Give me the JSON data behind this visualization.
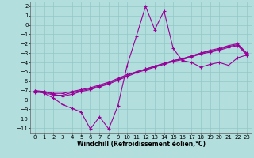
{
  "xlabel": "Windchill (Refroidissement éolien,°C)",
  "bg_color": "#b2dede",
  "grid_color": "#93c8c8",
  "line_color": "#990099",
  "xlim": [
    -0.5,
    23.5
  ],
  "ylim": [
    -11.5,
    2.5
  ],
  "xticks": [
    0,
    1,
    2,
    3,
    4,
    5,
    6,
    7,
    8,
    9,
    10,
    11,
    12,
    13,
    14,
    15,
    16,
    17,
    18,
    19,
    20,
    21,
    22,
    23
  ],
  "yticks": [
    2,
    1,
    0,
    -1,
    -2,
    -3,
    -4,
    -5,
    -6,
    -7,
    -8,
    -9,
    -10,
    -11
  ],
  "line1_x": [
    0,
    1,
    2,
    3,
    4,
    5,
    6,
    7,
    8,
    9,
    10,
    11,
    12,
    13,
    14,
    15,
    16,
    17,
    18,
    19,
    20,
    21,
    22,
    23
  ],
  "line1_y": [
    -7.0,
    -7.3,
    -7.8,
    -8.5,
    -8.9,
    -9.3,
    -11.1,
    -9.8,
    -11.1,
    -8.6,
    -4.3,
    -1.2,
    2.0,
    -0.5,
    1.5,
    -2.5,
    -3.8,
    -4.0,
    -4.5,
    -4.2,
    -4.0,
    -4.3,
    -3.5,
    -3.2
  ],
  "line2_x": [
    0,
    1,
    2,
    3,
    4,
    5,
    6,
    7,
    8,
    9,
    10,
    11,
    12,
    13,
    14,
    15,
    16,
    17,
    18,
    19,
    20,
    21,
    22,
    23
  ],
  "line2_y": [
    -7.0,
    -7.1,
    -7.4,
    -7.6,
    -7.4,
    -7.1,
    -6.9,
    -6.6,
    -6.3,
    -5.9,
    -5.5,
    -5.1,
    -4.8,
    -4.5,
    -4.2,
    -3.9,
    -3.7,
    -3.4,
    -3.1,
    -2.9,
    -2.7,
    -2.4,
    -2.2,
    -3.2
  ],
  "line3_x": [
    0,
    1,
    2,
    3,
    4,
    5,
    6,
    7,
    8,
    9,
    10,
    11,
    12,
    13,
    14,
    15,
    16,
    17,
    18,
    19,
    20,
    21,
    22,
    23
  ],
  "line3_y": [
    -7.1,
    -7.1,
    -7.3,
    -7.3,
    -7.1,
    -6.9,
    -6.7,
    -6.4,
    -6.1,
    -5.7,
    -5.3,
    -5.0,
    -4.7,
    -4.4,
    -4.1,
    -3.8,
    -3.6,
    -3.3,
    -3.0,
    -2.8,
    -2.6,
    -2.3,
    -2.1,
    -3.1
  ],
  "line4_x": [
    0,
    1,
    2,
    3,
    4,
    5,
    6,
    7,
    8,
    9,
    10,
    11,
    12,
    13,
    14,
    15,
    16,
    17,
    18,
    19,
    20,
    21,
    22,
    23
  ],
  "line4_y": [
    -7.2,
    -7.2,
    -7.5,
    -7.5,
    -7.2,
    -7.0,
    -6.8,
    -6.5,
    -6.2,
    -5.8,
    -5.4,
    -5.0,
    -4.7,
    -4.4,
    -4.1,
    -3.8,
    -3.6,
    -3.3,
    -3.0,
    -2.7,
    -2.5,
    -2.2,
    -2.0,
    -3.0
  ],
  "marker": "+",
  "markersize": 3,
  "linewidth": 0.8,
  "title_fontsize": 6,
  "axis_fontsize": 5.5,
  "tick_fontsize": 5
}
